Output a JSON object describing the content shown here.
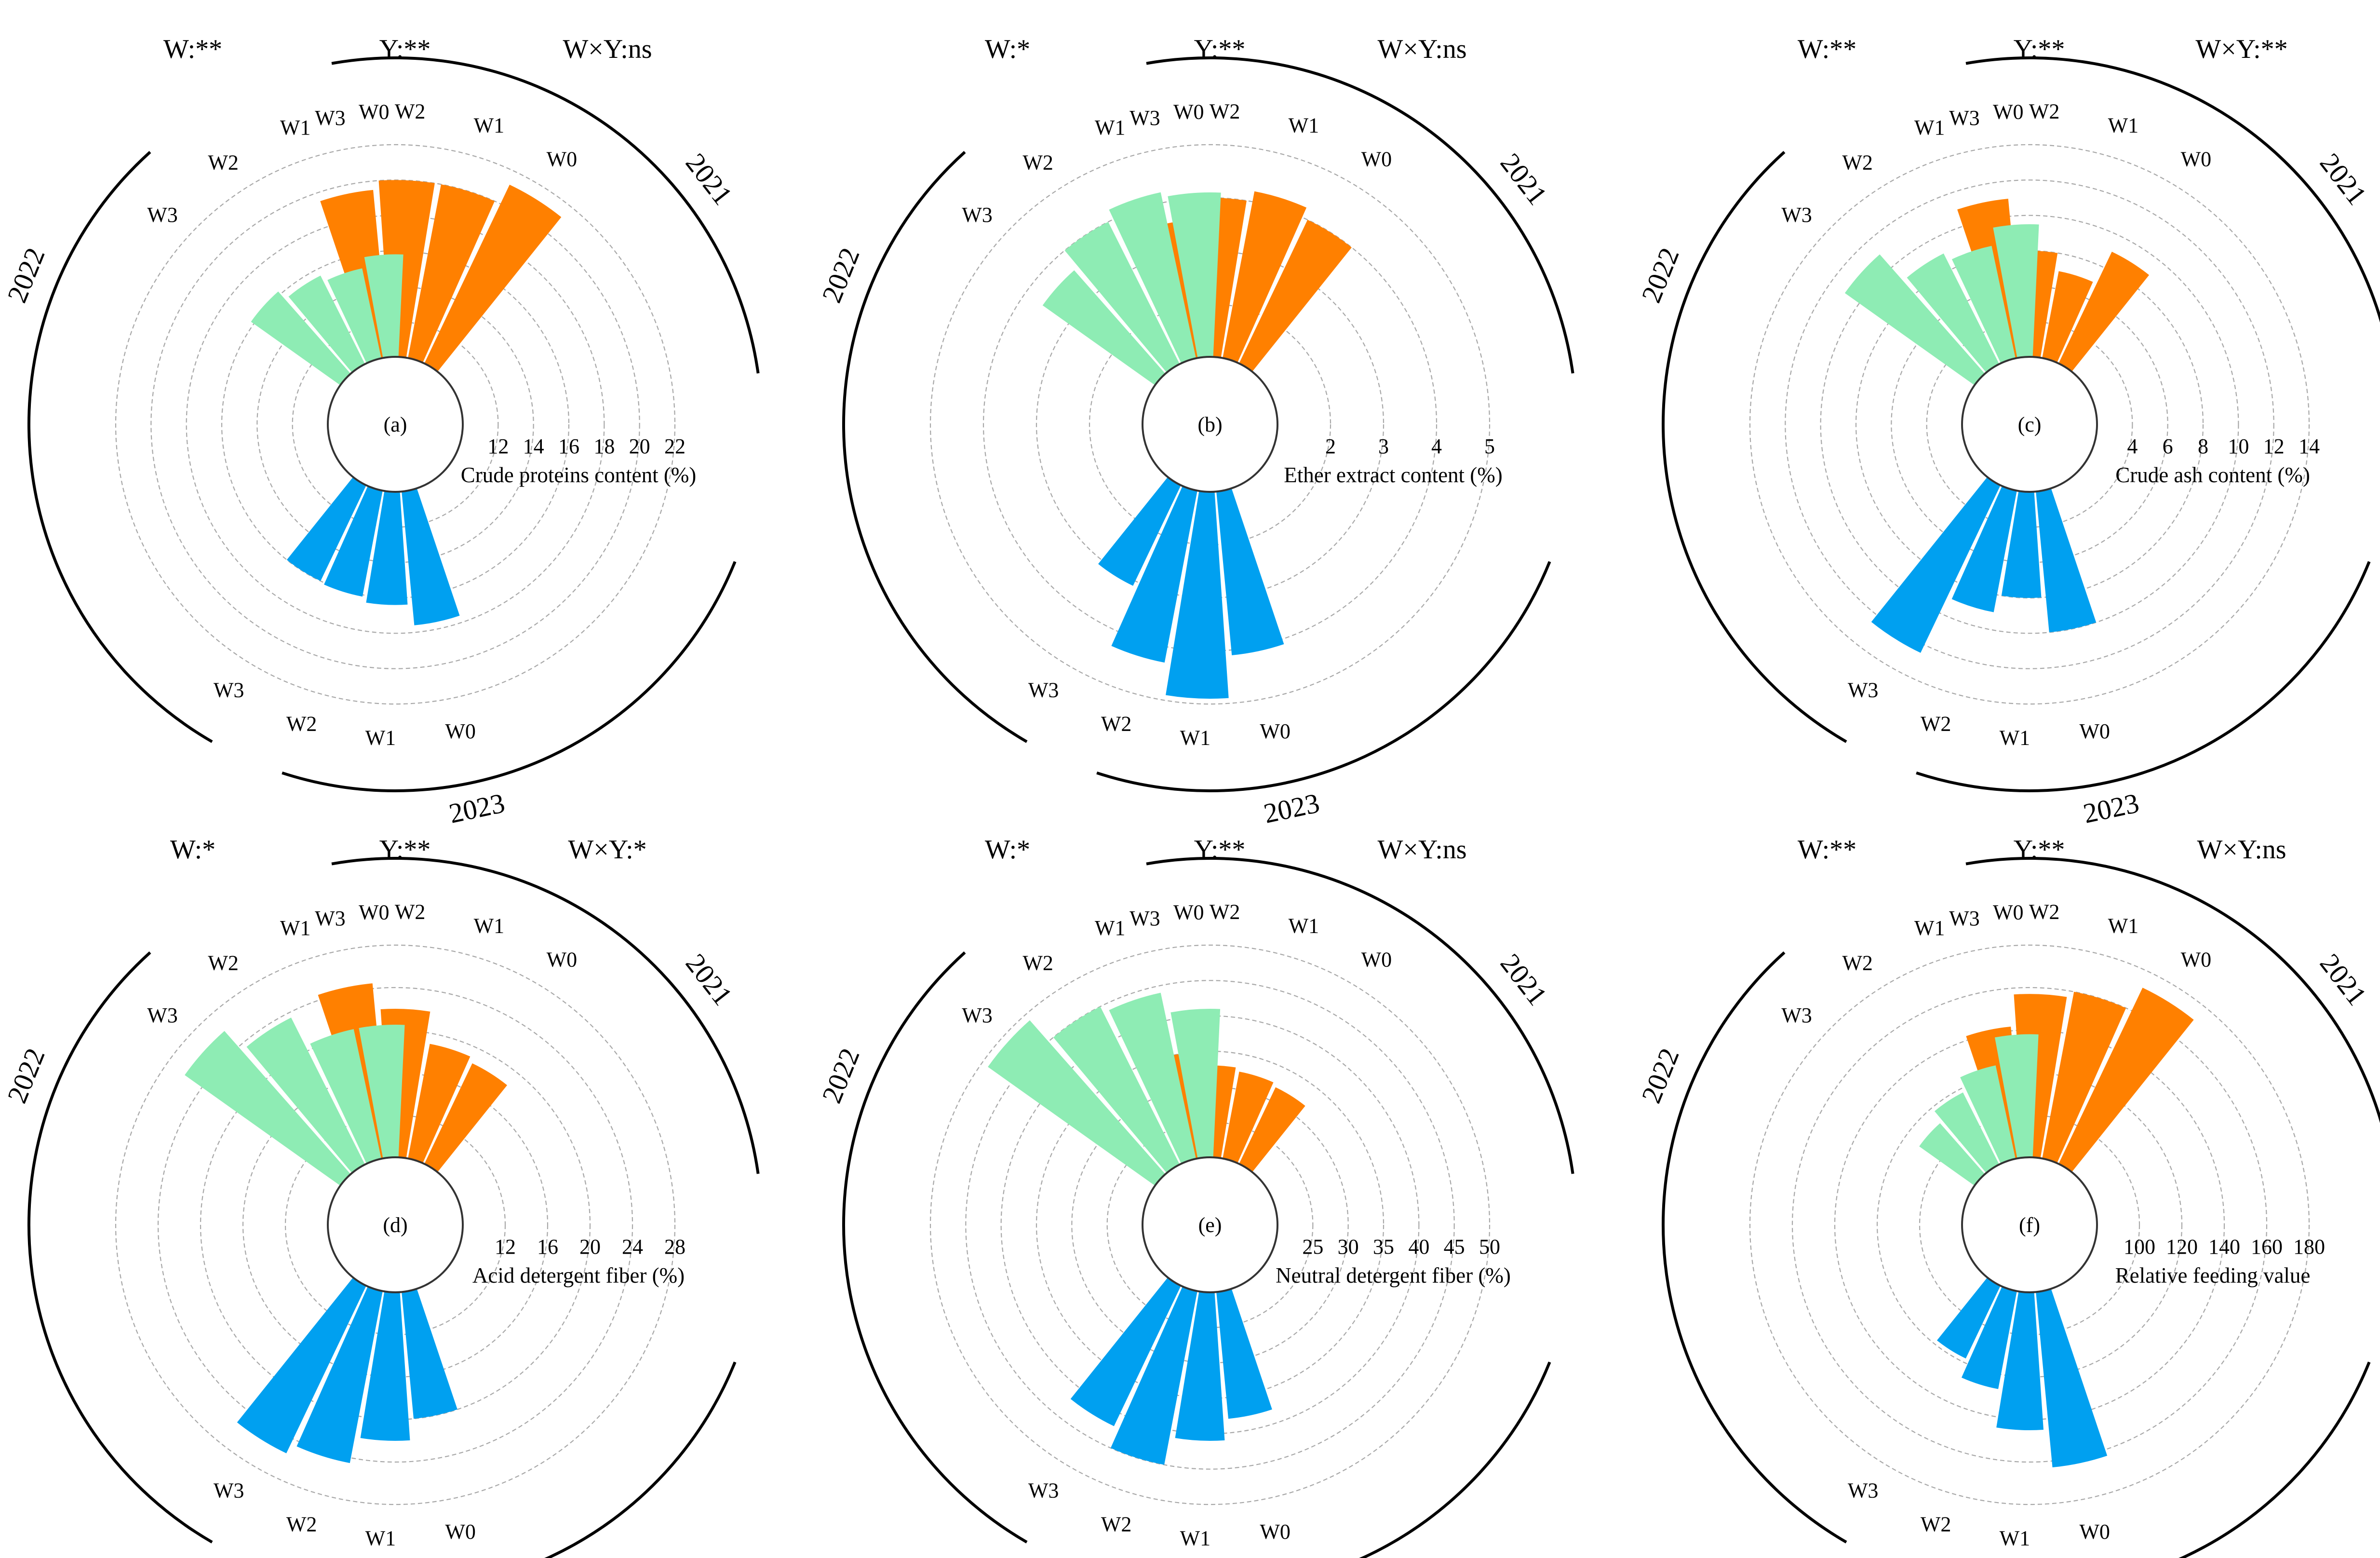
{
  "chart_data": [
    {
      "type": "bar",
      "panel_label": "(a)",
      "axis_title": "Crude proteins content (%)",
      "radial_ticks": [
        12,
        14,
        16,
        18,
        20,
        22
      ],
      "radial_range": [
        10,
        22
      ],
      "significance": [
        "W:**",
        "Y:**",
        "W×Y:ns"
      ],
      "series": [
        {
          "name": "2021",
          "color": "#ff8000",
          "categories": [
            "W3",
            "W2",
            "W1",
            "W0"
          ],
          "values": [
            19.5,
            20.0,
            20.0,
            21.2
          ]
        },
        {
          "name": "2022",
          "color": "#00a0f0",
          "categories": [
            "W0",
            "W1",
            "W2",
            "W3"
          ],
          "values": [
            17.6,
            16.4,
            16.1,
            16.0
          ]
        },
        {
          "name": "2023",
          "color": "#8eecb4",
          "categories": [
            "W3",
            "W2",
            "W1",
            "W0"
          ],
          "values": [
            16.2,
            15.6,
            15.2,
            15.8
          ]
        }
      ]
    },
    {
      "type": "bar",
      "panel_label": "(b)",
      "axis_title": "Ether extract content (%)",
      "radial_ticks": [
        2,
        3,
        4,
        5
      ],
      "radial_range": [
        1,
        5
      ],
      "significance": [
        "W:*",
        "Y:**",
        "W×Y:ns"
      ],
      "series": [
        {
          "name": "2021",
          "color": "#ff8000",
          "categories": [
            "W3",
            "W2",
            "W1",
            "W0"
          ],
          "values": [
            3.6,
            4.0,
            4.2,
            4.0
          ]
        },
        {
          "name": "2022",
          "color": "#00a0f0",
          "categories": [
            "W0",
            "W1",
            "W2",
            "W3"
          ],
          "values": [
            4.1,
            4.9,
            4.3,
            3.1
          ]
        },
        {
          "name": "2023",
          "color": "#8eecb4",
          "categories": [
            "W3",
            "W2",
            "W1",
            "W0"
          ],
          "values": [
            3.6,
            4.0,
            4.2,
            4.1
          ]
        }
      ]
    },
    {
      "type": "bar",
      "panel_label": "(c)",
      "axis_title": "Crude ash content (%)",
      "radial_ticks": [
        4,
        6,
        8,
        10,
        12,
        14
      ],
      "radial_range": [
        2,
        14
      ],
      "significance": [
        "W:**",
        "Y:**",
        "W×Y:**"
      ],
      "series": [
        {
          "name": "2021",
          "color": "#ff8000",
          "categories": [
            "W3",
            "W2",
            "W1",
            "W0"
          ],
          "values": [
            11.0,
            8.0,
            7.0,
            9.0
          ]
        },
        {
          "name": "2022",
          "color": "#00a0f0",
          "categories": [
            "W0",
            "W1",
            "W2",
            "W3"
          ],
          "values": [
            10.0,
            8.0,
            9.0,
            12.5
          ]
        },
        {
          "name": "2023",
          "color": "#8eecb4",
          "categories": [
            "W3",
            "W2",
            "W1",
            "W0"
          ],
          "values": [
            11.0,
            9.0,
            8.5,
            9.5
          ]
        }
      ]
    },
    {
      "type": "bar",
      "panel_label": "(d)",
      "axis_title": "Acid detergent fiber (%)",
      "radial_ticks": [
        12,
        16,
        20,
        24,
        28
      ],
      "radial_range": [
        8,
        28
      ],
      "significance": [
        "W:*",
        "Y:**",
        "W×Y:*"
      ],
      "series": [
        {
          "name": "2021",
          "color": "#ff8000",
          "categories": [
            "W3",
            "W2",
            "W1",
            "W0"
          ],
          "values": [
            24.5,
            22.0,
            19.0,
            18.5
          ]
        },
        {
          "name": "2022",
          "color": "#00a0f0",
          "categories": [
            "W0",
            "W1",
            "W2",
            "W3"
          ],
          "values": [
            20.0,
            22.0,
            24.5,
            25.5
          ]
        },
        {
          "name": "2023",
          "color": "#8eecb4",
          "categories": [
            "W3",
            "W2",
            "W1",
            "W0"
          ],
          "values": [
            26.0,
            23.5,
            20.5,
            20.5
          ]
        }
      ]
    },
    {
      "type": "bar",
      "panel_label": "(e)",
      "axis_title": "Neutral detergent fiber (%)",
      "radial_ticks": [
        25,
        30,
        35,
        40,
        45,
        50
      ],
      "radial_range": [
        20,
        50
      ],
      "significance": [
        "W:*",
        "Y:**",
        "W×Y:ns"
      ],
      "series": [
        {
          "name": "2021",
          "color": "#ff8000",
          "categories": [
            "W3",
            "W2",
            "W1",
            "W0"
          ],
          "values": [
            35.0,
            33.0,
            32.5,
            32.0
          ]
        },
        {
          "name": "2022",
          "color": "#00a0f0",
          "categories": [
            "W0",
            "W1",
            "W2",
            "W3"
          ],
          "values": [
            38.0,
            41.0,
            45.0,
            42.0
          ]
        },
        {
          "name": "2023",
          "color": "#8eecb4",
          "categories": [
            "W3",
            "W2",
            "W1",
            "W0"
          ],
          "values": [
            49.0,
            45.0,
            44.0,
            41.0
          ]
        }
      ]
    },
    {
      "type": "bar",
      "panel_label": "(f)",
      "axis_title": "Relative feeding value",
      "radial_ticks": [
        100,
        120,
        140,
        160,
        180
      ],
      "radial_range": [
        80,
        180
      ],
      "significance": [
        "W:**",
        "Y:**",
        "W×Y:ns"
      ],
      "series": [
        {
          "name": "2021",
          "color": "#ff8000",
          "categories": [
            "W3",
            "W2",
            "W1",
            "W0"
          ],
          "values": [
            142,
            157,
            160,
            172
          ]
        },
        {
          "name": "2022",
          "color": "#00a0f0",
          "categories": [
            "W0",
            "W1",
            "W2",
            "W3"
          ],
          "values": [
            163,
            145,
            127,
            118
          ]
        },
        {
          "name": "2023",
          "color": "#8eecb4",
          "categories": [
            "W3",
            "W2",
            "W1",
            "W0"
          ],
          "values": [
            112,
            118,
            125,
            138
          ]
        }
      ]
    }
  ]
}
